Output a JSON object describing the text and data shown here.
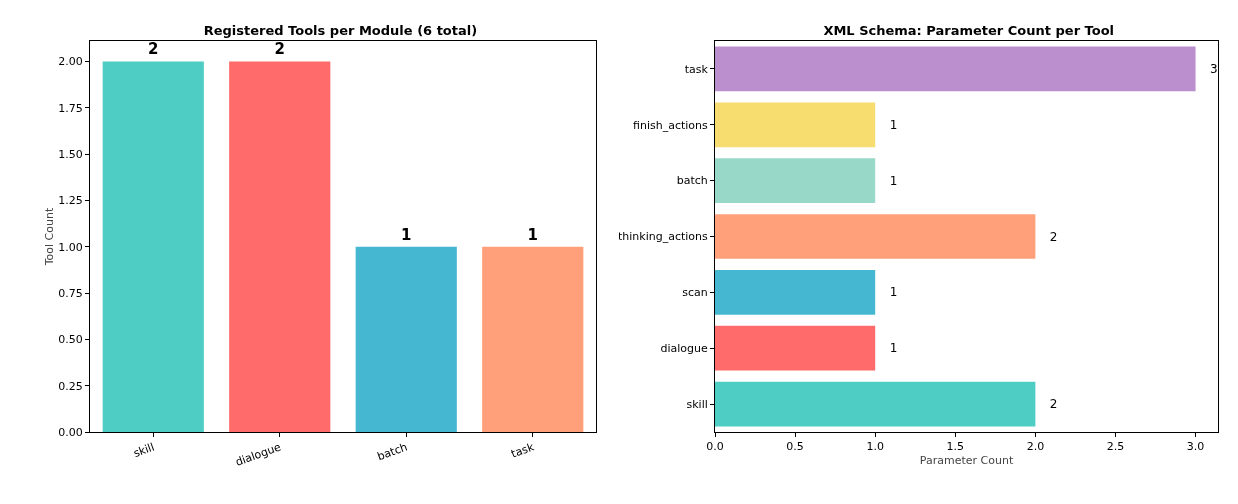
{
  "chart_data": [
    {
      "type": "bar",
      "title": "Registered Tools per Module (6 total)",
      "ylabel": "Tool Count",
      "categories": [
        "skill",
        "dialogue",
        "batch",
        "task"
      ],
      "values": [
        2,
        2,
        1,
        1
      ],
      "colors": [
        "#4ecdc4",
        "#ff6b6b",
        "#45b7d1",
        "#ffa07a"
      ],
      "ylim": [
        0,
        2.11
      ],
      "yticks": [
        {
          "value": 0,
          "label": "0.00"
        },
        {
          "value": 0.25,
          "label": "0.25"
        },
        {
          "value": 0.5,
          "label": "0.50"
        },
        {
          "value": 0.75,
          "label": "0.75"
        },
        {
          "value": 1,
          "label": "1.00"
        },
        {
          "value": 1.25,
          "label": "1.25"
        },
        {
          "value": 1.5,
          "label": "1.50"
        },
        {
          "value": 1.75,
          "label": "1.75"
        },
        {
          "value": 2,
          "label": "2.00"
        }
      ],
      "data_labels": true,
      "grid": false
    },
    {
      "type": "bar",
      "orientation": "horizontal",
      "title": "XML Schema: Parameter Count per Tool",
      "xlabel": "Parameter Count",
      "categories": [
        "task",
        "finish_actions",
        "batch",
        "thinking_actions",
        "scan",
        "dialogue",
        "skill"
      ],
      "values": [
        3,
        1,
        1,
        2,
        1,
        1,
        2
      ],
      "colors": [
        "#bb8fce",
        "#f7dc6f",
        "#98d8c8",
        "#ffa07a",
        "#45b7d1",
        "#ff6b6b",
        "#4ecdc4"
      ],
      "xlim": [
        0,
        3.14
      ],
      "xticks": [
        {
          "value": 0,
          "label": "0.0"
        },
        {
          "value": 0.5,
          "label": "0.5"
        },
        {
          "value": 1,
          "label": "1.0"
        },
        {
          "value": 1.5,
          "label": "1.5"
        },
        {
          "value": 2,
          "label": "2.0"
        },
        {
          "value": 2.5,
          "label": "2.5"
        },
        {
          "value": 3,
          "label": "3.0"
        }
      ],
      "data_labels": true,
      "grid": false
    }
  ]
}
